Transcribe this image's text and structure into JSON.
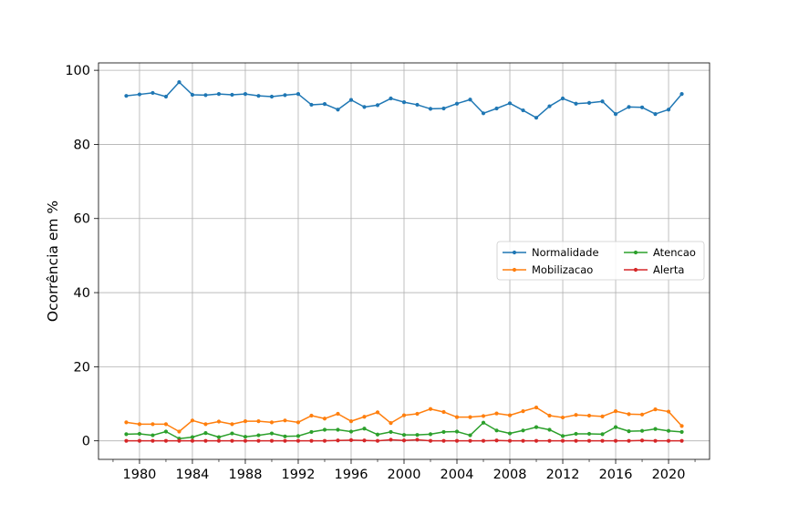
{
  "chart_data": {
    "type": "line",
    "title": "",
    "xlabel": "",
    "ylabel": "Ocorrência em %",
    "xlim": [
      1976.9,
      2023.1
    ],
    "ylim": [
      -5,
      102
    ],
    "x_ticks": [
      1980,
      1984,
      1988,
      1992,
      1996,
      2000,
      2004,
      2008,
      2012,
      2016,
      2020
    ],
    "y_ticks": [
      0,
      20,
      40,
      60,
      80,
      100
    ],
    "grid": true,
    "legend_position": "center-right",
    "legend_columns": 2,
    "x": [
      1979,
      1980,
      1981,
      1982,
      1983,
      1984,
      1985,
      1986,
      1987,
      1988,
      1989,
      1990,
      1991,
      1992,
      1993,
      1994,
      1995,
      1996,
      1997,
      1998,
      1999,
      2000,
      2001,
      2002,
      2003,
      2004,
      2005,
      2006,
      2007,
      2008,
      2009,
      2010,
      2011,
      2012,
      2013,
      2014,
      2015,
      2016,
      2017,
      2018,
      2019,
      2020,
      2021
    ],
    "series": [
      {
        "name": "Normalidade",
        "color": "#1f77b4",
        "values": [
          93.1,
          93.5,
          93.9,
          92.9,
          96.8,
          93.4,
          93.3,
          93.6,
          93.4,
          93.6,
          93.1,
          92.9,
          93.3,
          93.6,
          90.7,
          90.9,
          89.4,
          92.0,
          90.1,
          90.6,
          92.4,
          91.4,
          90.7,
          89.6,
          89.7,
          91.0,
          92.1,
          88.4,
          89.7,
          91.1,
          89.2,
          87.2,
          90.3,
          92.4,
          91.0,
          91.2,
          91.6,
          88.2,
          90.1,
          90.0,
          88.2,
          89.4,
          93.6
        ]
      },
      {
        "name": "Mobilizacao",
        "color": "#ff7f0e",
        "values": [
          5.0,
          4.5,
          4.5,
          4.5,
          2.5,
          5.5,
          4.5,
          5.2,
          4.5,
          5.3,
          5.3,
          5.0,
          5.5,
          5.0,
          6.8,
          6.0,
          7.3,
          5.3,
          6.5,
          7.7,
          4.8,
          6.9,
          7.3,
          8.6,
          7.8,
          6.4,
          6.4,
          6.7,
          7.4,
          6.9,
          8.0,
          9.0,
          6.8,
          6.3,
          7.0,
          6.8,
          6.6,
          8.0,
          7.2,
          7.1,
          8.5,
          7.9,
          4.0
        ]
      },
      {
        "name": "Atencao",
        "color": "#2ca02c",
        "values": [
          1.8,
          1.9,
          1.5,
          2.5,
          0.6,
          1.0,
          2.1,
          1.0,
          2.0,
          1.1,
          1.5,
          2.0,
          1.2,
          1.3,
          2.4,
          3.0,
          3.0,
          2.5,
          3.3,
          1.7,
          2.4,
          1.6,
          1.6,
          1.8,
          2.4,
          2.5,
          1.5,
          4.9,
          2.8,
          2.0,
          2.8,
          3.7,
          3.0,
          1.3,
          1.9,
          1.9,
          1.8,
          3.7,
          2.6,
          2.7,
          3.2,
          2.7,
          2.4
        ]
      },
      {
        "name": "Alerta",
        "color": "#d62728",
        "values": [
          0.0,
          0.0,
          0.0,
          0.0,
          0.0,
          0.0,
          0.0,
          0.0,
          0.0,
          0.0,
          0.0,
          0.0,
          0.0,
          0.0,
          0.0,
          0.0,
          0.1,
          0.2,
          0.1,
          0.0,
          0.3,
          0.1,
          0.3,
          0.0,
          0.0,
          0.0,
          0.0,
          0.0,
          0.1,
          0.0,
          0.0,
          0.0,
          0.0,
          0.0,
          0.0,
          0.0,
          0.0,
          0.0,
          0.0,
          0.1,
          0.0,
          0.0,
          0.0
        ]
      }
    ]
  }
}
